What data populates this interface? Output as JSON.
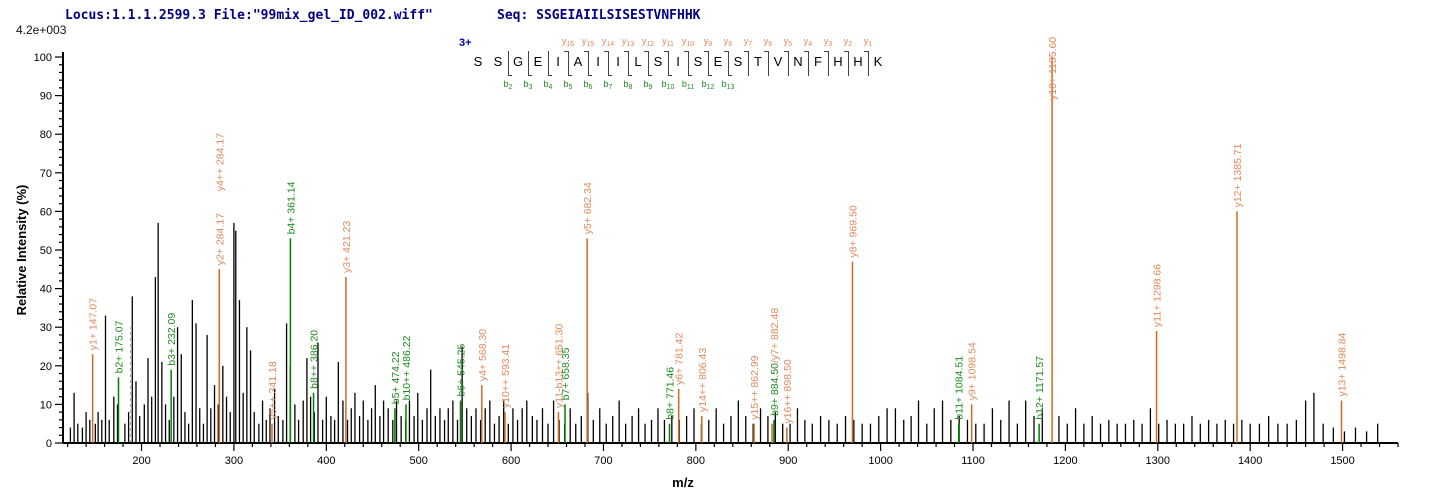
{
  "header": {
    "locus_file": "Locus:1.1.1.2599.3 File:\"99mix_gel_ID_002.wiff\"",
    "seq_label": "Seq: SSGEIAIILSISESTVNFHHK",
    "max_intensity": "4.2e+003"
  },
  "peptide": {
    "charge": "3+",
    "residues": [
      "S",
      "S",
      "G",
      "E",
      "I",
      "A",
      "I",
      "I",
      "L",
      "S",
      "I",
      "S",
      "E",
      "S",
      "T",
      "V",
      "N",
      "F",
      "H",
      "H",
      "K"
    ],
    "y_ion_max": 16,
    "y_ion_min": 1,
    "b_ion_min": 2,
    "b_ion_max": 13
  },
  "colors": {
    "header_text": "#000080",
    "charge_text": "#0000bb",
    "y_line": "#d2691e",
    "y_text": "#e08a5c",
    "b_line": "#008000",
    "b_text": "#1e8b1e",
    "background_peak": "#000000",
    "axis": "#000000",
    "dashed_peak": "#aaaaaa"
  },
  "chart_data": {
    "type": "mass-spectrum-stick",
    "xlabel": "m/z",
    "ylabel": "Relative  Intensity (%)",
    "x_range": [
      115,
      1560
    ],
    "y_range": [
      0,
      100
    ],
    "x_major_ticks": [
      200,
      300,
      400,
      500,
      600,
      700,
      800,
      900,
      1000,
      1100,
      1200,
      1300,
      1400,
      1500
    ],
    "x_minor_step": 20,
    "y_major_ticks": [
      0,
      10,
      20,
      30,
      40,
      50,
      60,
      70,
      80,
      90,
      100
    ],
    "y_minor_step": 2,
    "labeled_peaks": [
      {
        "label": "y1+ 147.07",
        "mz": 147.07,
        "intensity": 23,
        "series": "y"
      },
      {
        "label": "b2+ 175.07",
        "mz": 175.07,
        "intensity": 17,
        "series": "b"
      },
      {
        "label": "b3+ 232.09",
        "mz": 232.09,
        "intensity": 19,
        "series": "b"
      },
      {
        "label": "y2+ 284.17",
        "mz": 284.17,
        "intensity": 45,
        "series": "y"
      },
      {
        "label": "y4++ 284.17",
        "mz": 284.17,
        "intensity": 45,
        "series": "y"
      },
      {
        "label": "y5++ 341.18",
        "mz": 341.18,
        "intensity": 5,
        "series": "y"
      },
      {
        "label": "b4+ 361.14",
        "mz": 361.14,
        "intensity": 53,
        "series": "b"
      },
      {
        "label": "b8++ 386.20",
        "mz": 386.2,
        "intensity": 13,
        "series": "b"
      },
      {
        "label": "y3+ 421.23",
        "mz": 421.23,
        "intensity": 43,
        "series": "y"
      },
      {
        "label": "b5+ 474.22",
        "mz": 474.22,
        "intensity": 9,
        "series": "b"
      },
      {
        "label": "b10++ 486.22",
        "mz": 486.22,
        "intensity": 10,
        "series": "b"
      },
      {
        "label": "b6+ 545.25",
        "mz": 545.25,
        "intensity": 11,
        "series": "b"
      },
      {
        "label": "y4+ 568.30",
        "mz": 568.3,
        "intensity": 15,
        "series": "y"
      },
      {
        "label": "y10++ 593.41",
        "mz": 593.41,
        "intensity": 8,
        "series": "y"
      },
      {
        "label": "y11-b13++ 651.30",
        "mz": 651.3,
        "intensity": 8,
        "series": "y"
      },
      {
        "label": "b7+ 658.35",
        "mz": 658.35,
        "intensity": 10,
        "series": "b"
      },
      {
        "label": "y5+ 682.34",
        "mz": 682.34,
        "intensity": 53,
        "series": "y"
      },
      {
        "label": "b8+ 771.46",
        "mz": 771.46,
        "intensity": 5,
        "series": "b"
      },
      {
        "label": "y6+ 781.42",
        "mz": 781.42,
        "intensity": 14,
        "series": "y"
      },
      {
        "label": "y14++ 806.43",
        "mz": 806.43,
        "intensity": 7,
        "series": "y"
      },
      {
        "label": "y15++ 862.99",
        "mz": 862.99,
        "intensity": 5,
        "series": "y"
      },
      {
        "label": "",
        "mz": 882.48,
        "intensity": 5,
        "series": "y"
      },
      {
        "label": "b9+ 884.50",
        "mz": 884.5,
        "intensity": 6,
        "series": "b",
        "label_parts": [
          {
            "text": "b9+ 884.50",
            "series": "b"
          },
          {
            "text": "/y7+ 882.48",
            "series": "y"
          }
        ]
      },
      {
        "label": "y16++ 898.50",
        "mz": 898.5,
        "intensity": 4,
        "series": "y"
      },
      {
        "label": "y8+ 969.50",
        "mz": 969.5,
        "intensity": 47,
        "series": "y"
      },
      {
        "label": "b11+ 1084.51",
        "mz": 1084.51,
        "intensity": 5,
        "series": "b"
      },
      {
        "label": "y9+ 1098.54",
        "mz": 1098.54,
        "intensity": 10,
        "series": "y"
      },
      {
        "label": "b12+ 1171.57",
        "mz": 1171.57,
        "intensity": 5,
        "series": "b"
      },
      {
        "label": "y10+ 1185.60",
        "mz": 1185.6,
        "intensity": 100,
        "series": "y"
      },
      {
        "label": "y11+ 1298.66",
        "mz": 1298.66,
        "intensity": 29,
        "series": "y"
      },
      {
        "label": "y12+ 1385.71",
        "mz": 1385.71,
        "intensity": 60,
        "series": "y"
      },
      {
        "label": "y13+ 1498.84",
        "mz": 1498.84,
        "intensity": 11,
        "series": "y"
      }
    ],
    "dashed_peak": {
      "mz": 188,
      "intensity": 30
    },
    "background_peaks": [
      [
        123,
        4
      ],
      [
        127,
        13
      ],
      [
        131,
        5
      ],
      [
        136,
        4
      ],
      [
        140,
        8
      ],
      [
        144,
        6
      ],
      [
        150,
        5
      ],
      [
        153,
        8
      ],
      [
        157,
        6
      ],
      [
        161,
        33
      ],
      [
        165,
        6
      ],
      [
        170,
        12
      ],
      [
        174,
        10
      ],
      [
        182,
        5
      ],
      [
        186,
        8
      ],
      [
        190,
        38
      ],
      [
        194,
        16
      ],
      [
        198,
        7
      ],
      [
        203,
        10
      ],
      [
        207,
        22
      ],
      [
        211,
        12
      ],
      [
        215,
        43
      ],
      [
        218,
        57
      ],
      [
        222,
        21
      ],
      [
        226,
        10
      ],
      [
        230,
        6
      ],
      [
        235,
        12
      ],
      [
        239,
        30
      ],
      [
        243,
        23
      ],
      [
        247,
        8
      ],
      [
        251,
        5
      ],
      [
        255,
        37
      ],
      [
        259,
        31
      ],
      [
        263,
        9
      ],
      [
        267,
        5
      ],
      [
        271,
        28
      ],
      [
        275,
        9
      ],
      [
        279,
        15
      ],
      [
        283,
        10
      ],
      [
        288,
        20
      ],
      [
        292,
        12
      ],
      [
        296,
        8
      ],
      [
        300,
        57
      ],
      [
        302,
        55
      ],
      [
        306,
        37
      ],
      [
        310,
        13
      ],
      [
        314,
        30
      ],
      [
        318,
        24
      ],
      [
        322,
        8
      ],
      [
        327,
        5
      ],
      [
        331,
        11
      ],
      [
        335,
        6
      ],
      [
        339,
        9
      ],
      [
        344,
        14
      ],
      [
        348,
        7
      ],
      [
        353,
        6
      ],
      [
        357,
        31
      ],
      [
        361,
        20
      ],
      [
        366,
        10
      ],
      [
        370,
        6
      ],
      [
        375,
        11
      ],
      [
        379,
        22
      ],
      [
        383,
        12
      ],
      [
        387,
        8
      ],
      [
        391,
        26
      ],
      [
        396,
        6
      ],
      [
        400,
        12
      ],
      [
        405,
        7
      ],
      [
        409,
        6
      ],
      [
        413,
        21
      ],
      [
        418,
        11
      ],
      [
        423,
        6
      ],
      [
        427,
        9
      ],
      [
        431,
        13
      ],
      [
        436,
        7
      ],
      [
        440,
        11
      ],
      [
        445,
        6
      ],
      [
        449,
        9
      ],
      [
        453,
        15
      ],
      [
        458,
        7
      ],
      [
        462,
        11
      ],
      [
        467,
        9
      ],
      [
        472,
        6
      ],
      [
        476,
        11
      ],
      [
        481,
        7
      ],
      [
        486,
        6
      ],
      [
        490,
        11
      ],
      [
        495,
        7
      ],
      [
        499,
        13
      ],
      [
        504,
        6
      ],
      [
        509,
        9
      ],
      [
        513,
        19
      ],
      [
        518,
        7
      ],
      [
        523,
        9
      ],
      [
        528,
        6
      ],
      [
        532,
        9
      ],
      [
        537,
        11
      ],
      [
        542,
        6
      ],
      [
        547,
        25
      ],
      [
        552,
        9
      ],
      [
        557,
        7
      ],
      [
        562,
        9
      ],
      [
        567,
        6
      ],
      [
        572,
        9
      ],
      [
        577,
        11
      ],
      [
        582,
        5
      ],
      [
        587,
        7
      ],
      [
        592,
        11
      ],
      [
        597,
        5
      ],
      [
        602,
        9
      ],
      [
        607,
        6
      ],
      [
        612,
        9
      ],
      [
        617,
        11
      ],
      [
        623,
        7
      ],
      [
        628,
        6
      ],
      [
        634,
        9
      ],
      [
        640,
        5
      ],
      [
        646,
        11
      ],
      [
        652,
        6
      ],
      [
        658,
        5
      ],
      [
        664,
        9
      ],
      [
        670,
        5
      ],
      [
        676,
        7
      ],
      [
        683,
        13
      ],
      [
        689,
        6
      ],
      [
        696,
        9
      ],
      [
        703,
        5
      ],
      [
        710,
        7
      ],
      [
        717,
        11
      ],
      [
        724,
        5
      ],
      [
        731,
        7
      ],
      [
        738,
        9
      ],
      [
        745,
        5
      ],
      [
        752,
        6
      ],
      [
        759,
        9
      ],
      [
        766,
        6
      ],
      [
        774,
        7
      ],
      [
        782,
        6
      ],
      [
        790,
        7
      ],
      [
        798,
        9
      ],
      [
        806,
        5
      ],
      [
        814,
        6
      ],
      [
        822,
        9
      ],
      [
        830,
        5
      ],
      [
        838,
        7
      ],
      [
        846,
        11
      ],
      [
        854,
        7
      ],
      [
        862,
        5
      ],
      [
        870,
        9
      ],
      [
        878,
        7
      ],
      [
        886,
        8
      ],
      [
        894,
        5
      ],
      [
        902,
        5
      ],
      [
        910,
        9
      ],
      [
        918,
        6
      ],
      [
        926,
        5
      ],
      [
        935,
        7
      ],
      [
        944,
        6
      ],
      [
        953,
        5
      ],
      [
        962,
        7
      ],
      [
        971,
        6
      ],
      [
        980,
        5
      ],
      [
        989,
        5
      ],
      [
        998,
        7
      ],
      [
        1007,
        9
      ],
      [
        1016,
        9
      ],
      [
        1025,
        6
      ],
      [
        1033,
        7
      ],
      [
        1041,
        11
      ],
      [
        1050,
        5
      ],
      [
        1058,
        9
      ],
      [
        1067,
        11
      ],
      [
        1076,
        6
      ],
      [
        1085,
        7
      ],
      [
        1094,
        6
      ],
      [
        1103,
        5
      ],
      [
        1112,
        5
      ],
      [
        1121,
        9
      ],
      [
        1130,
        6
      ],
      [
        1139,
        11
      ],
      [
        1148,
        5
      ],
      [
        1157,
        11
      ],
      [
        1166,
        7
      ],
      [
        1175,
        9
      ],
      [
        1193,
        7
      ],
      [
        1202,
        5
      ],
      [
        1211,
        9
      ],
      [
        1220,
        5
      ],
      [
        1229,
        7
      ],
      [
        1238,
        5
      ],
      [
        1247,
        6
      ],
      [
        1256,
        5
      ],
      [
        1265,
        5
      ],
      [
        1274,
        6
      ],
      [
        1283,
        5
      ],
      [
        1292,
        9
      ],
      [
        1301,
        5
      ],
      [
        1310,
        6
      ],
      [
        1319,
        5
      ],
      [
        1328,
        5
      ],
      [
        1337,
        7
      ],
      [
        1346,
        5
      ],
      [
        1355,
        6
      ],
      [
        1364,
        5
      ],
      [
        1373,
        6
      ],
      [
        1382,
        5
      ],
      [
        1391,
        6
      ],
      [
        1400,
        5
      ],
      [
        1410,
        5
      ],
      [
        1420,
        7
      ],
      [
        1430,
        5
      ],
      [
        1440,
        5
      ],
      [
        1450,
        6
      ],
      [
        1460,
        11
      ],
      [
        1469,
        13
      ],
      [
        1479,
        5
      ],
      [
        1490,
        4
      ],
      [
        1502,
        3
      ],
      [
        1514,
        4
      ],
      [
        1526,
        3
      ],
      [
        1538,
        5
      ]
    ]
  }
}
